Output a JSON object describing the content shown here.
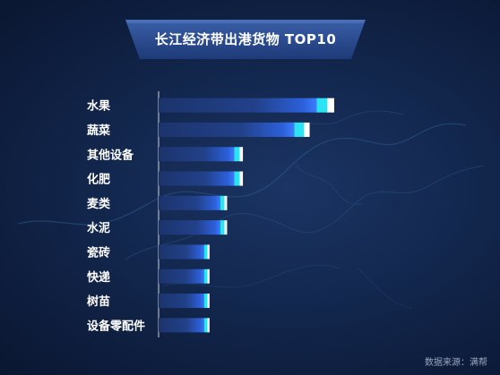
{
  "title": "长江经济带出港货物 TOP10",
  "source_text": "数据来源：满帮",
  "colors": {
    "background": "#13284f",
    "bar_dark": "#1f3a78",
    "bar_blue": "#2f6cff",
    "bar_cyan": "#27e0f2",
    "bar_white": "#ffffff",
    "axis": "#c9d3e6",
    "label": "#ffffff"
  },
  "chart_data": {
    "type": "bar",
    "orientation": "horizontal",
    "title": "长江经济带出港货物 TOP10",
    "categories": [
      "水果",
      "蔬菜",
      "其他设备",
      "化肥",
      "麦类",
      "水泥",
      "瓷砖",
      "快递",
      "树苗",
      "设备零配件"
    ],
    "values": [
      100,
      86,
      48,
      48,
      39,
      39,
      29,
      29,
      29,
      29
    ],
    "grid": false,
    "legend": "none",
    "tick_labels_shown": false
  }
}
